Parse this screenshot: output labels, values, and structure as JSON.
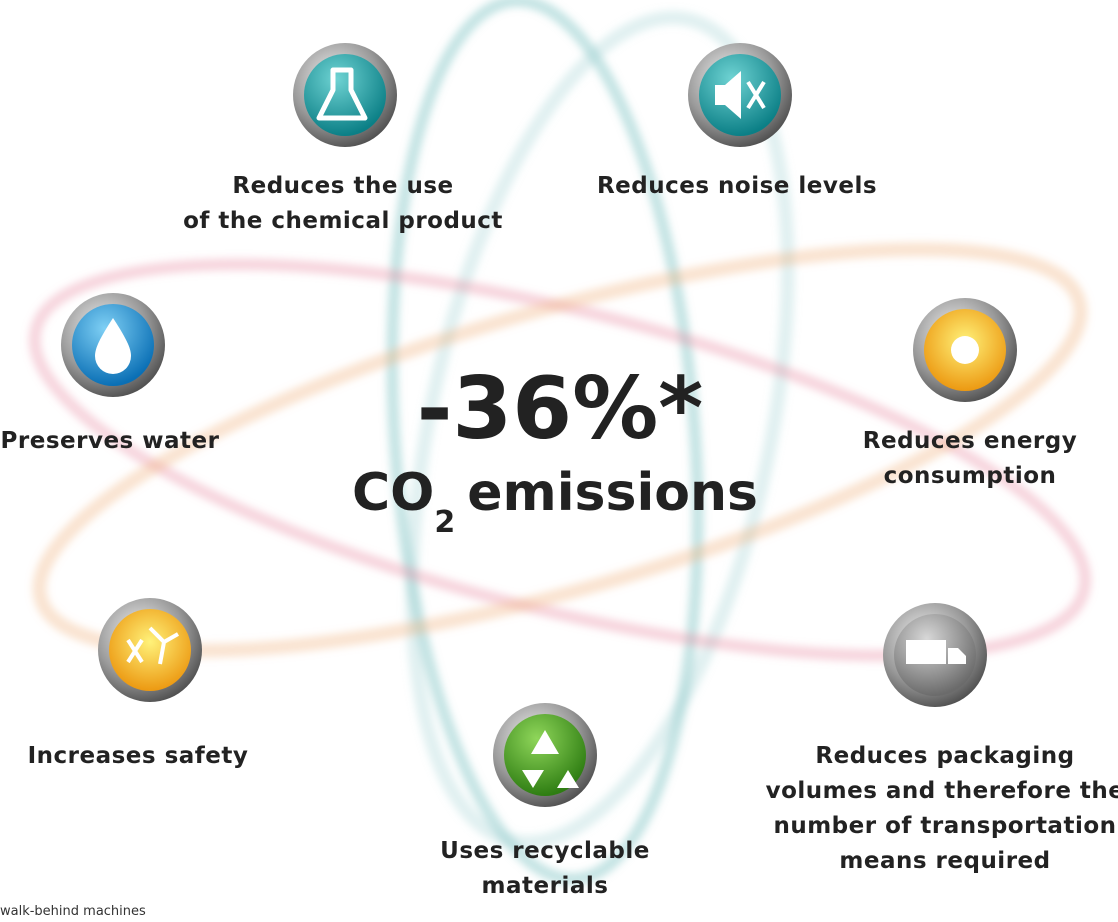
{
  "headline": {
    "value": "-36%*",
    "co": "CO",
    "subscript": "2",
    "emissions": "emissions"
  },
  "benefits": [
    {
      "lines": [
        "Reduces the use",
        "of the chemical product"
      ]
    },
    {
      "lines": [
        "Reduces noise levels"
      ]
    },
    {
      "lines": [
        "Preserves water"
      ]
    },
    {
      "lines": [
        "Reduces energy",
        "consumption"
      ]
    },
    {
      "lines": [
        "Increases safety"
      ]
    },
    {
      "lines": [
        "Uses recyclable",
        "materials"
      ]
    },
    {
      "lines": [
        "Reduces packaging",
        "volumes and therefore the",
        "number of transportation",
        "means required"
      ]
    }
  ],
  "footnote": "walk-behind machines"
}
